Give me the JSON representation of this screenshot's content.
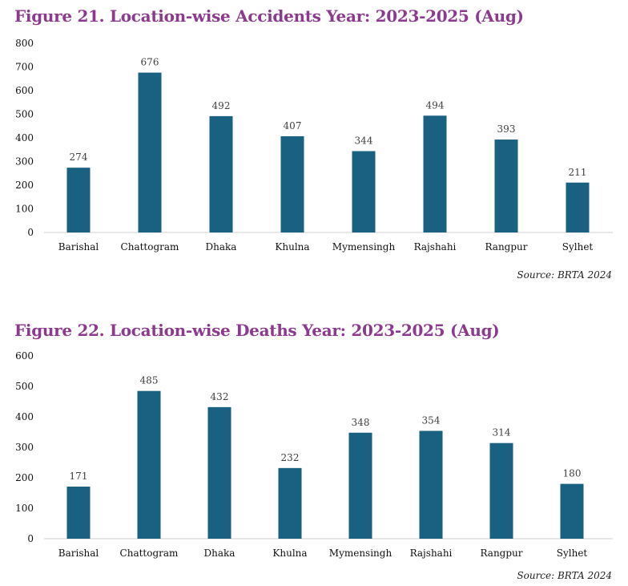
{
  "chart_data": [
    {
      "type": "bar",
      "title": "Figure 21. Location-wise Accidents Year: 2023-2025 (Aug)",
      "categories": [
        "Barishal",
        "Chattogram",
        "Dhaka",
        "Khulna",
        "Mymensingh",
        "Rajshahi",
        "Rangpur",
        "Sylhet"
      ],
      "values": [
        274,
        676,
        492,
        407,
        344,
        494,
        393,
        211
      ],
      "ylim": [
        0,
        800
      ],
      "yticks": [
        0,
        100,
        200,
        300,
        400,
        500,
        600,
        700,
        800
      ],
      "xlabel": "",
      "ylabel": "",
      "grid": false,
      "source": "Source: BRTA 2024",
      "bar_color": "#1A6080"
    },
    {
      "type": "bar",
      "title": "Figure 22. Location-wise Deaths Year: 2023-2025 (Aug)",
      "categories": [
        "Barishal",
        "Chattogram",
        "Dhaka",
        "Khulna",
        "Mymensingh",
        "Rajshahi",
        "Rangpur",
        "Sylhet"
      ],
      "values": [
        171,
        485,
        432,
        232,
        348,
        354,
        314,
        180
      ],
      "ylim": [
        0,
        600
      ],
      "yticks": [
        0,
        100,
        200,
        300,
        400,
        500,
        600
      ],
      "xlabel": "",
      "ylabel": "",
      "grid": false,
      "source": "Source: BRTA 2024",
      "bar_color": "#1A6080"
    }
  ]
}
